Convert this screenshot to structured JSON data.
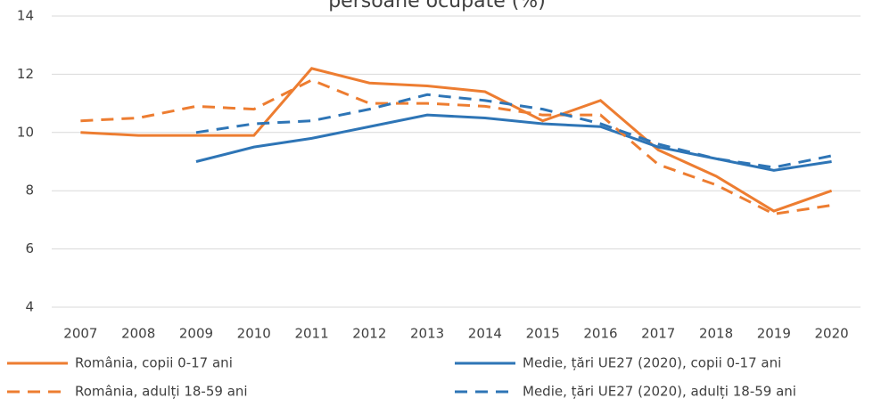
{
  "chart_data": {
    "type": "line",
    "title": "persoane ocupate (%)",
    "categories": [
      "2007",
      "2008",
      "2009",
      "2010",
      "2011",
      "2012",
      "2013",
      "2014",
      "2015",
      "2016",
      "2017",
      "2018",
      "2019",
      "2020"
    ],
    "series": [
      {
        "name": "România, copii 0-17 ani",
        "color": "#ed7d31",
        "dash": false,
        "values": [
          10.0,
          9.9,
          9.9,
          9.9,
          12.2,
          11.7,
          11.6,
          11.4,
          10.4,
          11.1,
          9.4,
          8.5,
          7.3,
          8.0
        ]
      },
      {
        "name": "Medie, țări UE27 (2020), copii 0-17 ani",
        "color": "#2e75b6",
        "dash": false,
        "values": [
          null,
          null,
          9.0,
          9.5,
          9.8,
          10.2,
          10.6,
          10.5,
          10.3,
          10.2,
          9.5,
          9.1,
          8.7,
          9.0
        ]
      },
      {
        "name": "România, adulți 18-59 ani",
        "color": "#ed7d31",
        "dash": true,
        "values": [
          10.4,
          10.5,
          10.9,
          10.8,
          11.8,
          11.0,
          11.0,
          10.9,
          10.6,
          10.6,
          8.9,
          8.2,
          7.2,
          7.5
        ]
      },
      {
        "name": "Medie, țări UE27 (2020), adulți 18-59 ani",
        "color": "#2e75b6",
        "dash": true,
        "values": [
          null,
          null,
          10.0,
          10.3,
          10.4,
          10.8,
          11.3,
          11.1,
          10.8,
          10.3,
          9.6,
          9.1,
          8.8,
          9.2
        ]
      }
    ],
    "ylim": [
      4,
      14
    ],
    "yticks": [
      4,
      6,
      8,
      10,
      12,
      14
    ],
    "grid": true
  }
}
